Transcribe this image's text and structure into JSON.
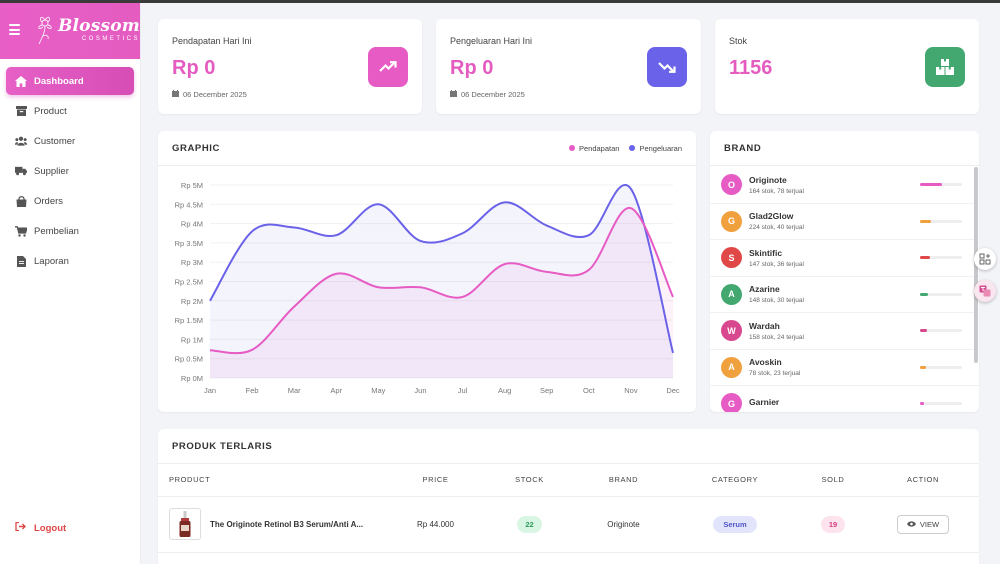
{
  "app": {
    "logo_main": "Blossom",
    "logo_sub": "COSMETICS"
  },
  "sidebar": {
    "items": [
      {
        "label": "Dashboard"
      },
      {
        "label": "Product"
      },
      {
        "label": "Customer"
      },
      {
        "label": "Supplier"
      },
      {
        "label": "Orders"
      },
      {
        "label": "Pembelian"
      },
      {
        "label": "Laporan"
      }
    ],
    "logout_label": "Logout"
  },
  "stats": [
    {
      "title": "Pendapatan Hari Ini",
      "value": "Rp 0",
      "date": "06 December 2025"
    },
    {
      "title": "Pengeluaran Hari Ini",
      "value": "Rp 0",
      "date": "06 December 2025"
    },
    {
      "title": "Stok",
      "value": "1156"
    }
  ],
  "colors": {
    "accent": "#e45cc0",
    "pendapatan": "#e65bc4",
    "pengeluaran": "#6a62e8",
    "stok_icon": "#43a870"
  },
  "graphic": {
    "title": "GRAPHIC",
    "legend": [
      "Pendapatan",
      "Pengeluaran"
    ]
  },
  "chart_data": {
    "type": "area",
    "title": "GRAPHIC",
    "categories": [
      "Jan",
      "Feb",
      "Mar",
      "Apr",
      "May",
      "Jun",
      "Jul",
      "Aug",
      "Sep",
      "Oct",
      "Nov",
      "Dec"
    ],
    "yticks": [
      "Rp 0M",
      "Rp 0.5M",
      "Rp 1M",
      "Rp 1.5M",
      "Rp 2M",
      "Rp 2.5M",
      "Rp 3M",
      "Rp 3.5M",
      "Rp 4M",
      "Rp 4.5M",
      "Rp 5M"
    ],
    "ylim": [
      0,
      5000000
    ],
    "series": [
      {
        "name": "Pendapatan",
        "values": [
          720000,
          730000,
          1850000,
          2700000,
          2350000,
          2350000,
          2100000,
          2950000,
          2750000,
          2800000,
          4400000,
          2100000
        ]
      },
      {
        "name": "Pengeluaran",
        "values": [
          2000000,
          3800000,
          3900000,
          3700000,
          4500000,
          3550000,
          3750000,
          4550000,
          3950000,
          3700000,
          4900000,
          650000
        ]
      }
    ]
  },
  "brand_panel": {
    "title": "BRAND",
    "items": [
      {
        "initial": "O",
        "name": "Originote",
        "stat": "164 stok, 78 terjual",
        "color": "#e65bc4",
        "share": 0.52
      },
      {
        "initial": "G",
        "name": "Glad2Glow",
        "stat": "224 stok, 40 terjual",
        "color": "#f0a03c",
        "share": 0.27
      },
      {
        "initial": "S",
        "name": "Skintific",
        "stat": "147 stok, 36 terjual",
        "color": "#e04848",
        "share": 0.24
      },
      {
        "initial": "A",
        "name": "Azarine",
        "stat": "148 stok, 30 terjual",
        "color": "#43a870",
        "share": 0.2
      },
      {
        "initial": "W",
        "name": "Wardah",
        "stat": "158 stok, 24 terjual",
        "color": "#d8488f",
        "share": 0.16
      },
      {
        "initial": "A",
        "name": "Avoskin",
        "stat": "78 stok, 23 terjual",
        "color": "#f0a03c",
        "share": 0.15
      },
      {
        "initial": "G",
        "name": "Garnier",
        "stat": "",
        "color": "#e65bc4",
        "share": 0.1
      }
    ]
  },
  "best_sellers": {
    "title": "PRODUK TERLARIS",
    "columns": [
      "PRODUCT",
      "PRICE",
      "STOCK",
      "BRAND",
      "CATEGORY",
      "SOLD",
      "ACTION"
    ],
    "rows": [
      {
        "product": "The Originote Retinol B3 Serum/Anti A...",
        "price": "Rp 44.000",
        "stock": "22",
        "brand": "Originote",
        "category": "Serum",
        "sold": "19",
        "action": "VIEW"
      }
    ]
  }
}
